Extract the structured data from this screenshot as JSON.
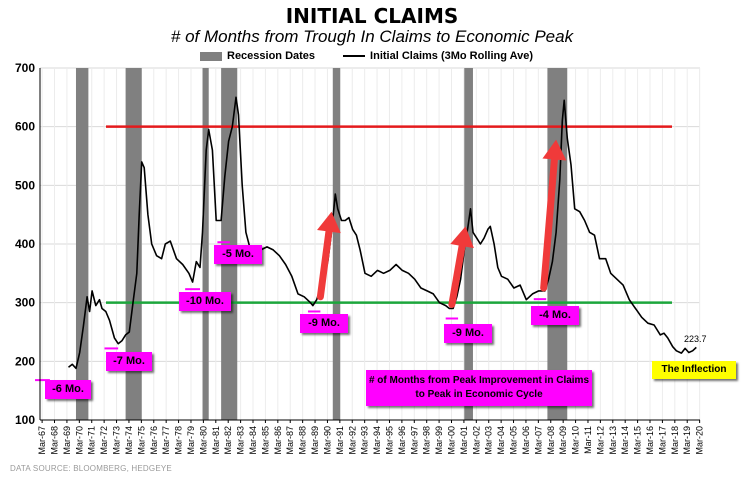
{
  "title": "INITIAL CLAIMS",
  "subtitle": "# of Months from Trough In Claims to Economic Peak",
  "legend": {
    "recession_label": "Recession Dates",
    "claims_label": "Initial Claims (3Mo Rolling Ave)"
  },
  "source": "DATA SOURCE: BLOOMBERG, HEDGEYE",
  "annotations": {
    "box_6": "-6 Mo.",
    "box_7": "-7 Mo.",
    "box_10": "-10 Mo.",
    "box_5": "-5 Mo.",
    "box_9a": "-9 Mo.",
    "box_9b": "-9 Mo.",
    "box_4": "-4 Mo.",
    "note": "# of Months from Peak Improvement in Claims to Peak in Economic Cycle",
    "inflection": "The Inflection",
    "last_value": "223.7"
  },
  "colors": {
    "upper_line": "#e41a1c",
    "lower_line": "#1ca63c",
    "recession": "#808080",
    "series": "#000000",
    "arrow": "#f03a3a",
    "box": "#ff00ff",
    "inflection": "#ffff00"
  },
  "chart_data": {
    "type": "line",
    "title": "INITIAL CLAIMS",
    "subtitle": "# of Months from Trough In Claims to Economic Peak",
    "ylim": [
      100,
      700
    ],
    "yticks": [
      100,
      200,
      300,
      400,
      500,
      600,
      700
    ],
    "xlim": [
      1967.0,
      2020.2
    ],
    "xticklabels": [
      "Mar-67",
      "Mar-68",
      "Mar-69",
      "Mar-70",
      "Mar-71",
      "Mar-72",
      "Mar-73",
      "Mar-74",
      "Mar-75",
      "Mar-76",
      "Mar-77",
      "Mar-78",
      "Mar-79",
      "Mar-80",
      "Mar-81",
      "Mar-82",
      "Mar-83",
      "Mar-84",
      "Mar-85",
      "Mar-86",
      "Mar-87",
      "Mar-88",
      "Mar-89",
      "Mar-90",
      "Mar-91",
      "Mar-92",
      "Mar-93",
      "Mar-94",
      "Mar-95",
      "Mar-96",
      "Mar-97",
      "Mar-98",
      "Mar-99",
      "Mar-00",
      "Mar-01",
      "Mar-02",
      "Mar-03",
      "Mar-04",
      "Mar-05",
      "Mar-06",
      "Mar-07",
      "Mar-08",
      "Mar-09",
      "Mar-10",
      "Mar-11",
      "Mar-12",
      "Mar-13",
      "Mar-14",
      "Mar-15",
      "Mar-16",
      "Mar-17",
      "Mar-18",
      "Mar-19",
      "Mar-20"
    ],
    "grid": true,
    "legend_position": "top",
    "series": [
      {
        "name": "Initial Claims (3Mo Rolling Ave)",
        "points": [
          [
            1969.3,
            190
          ],
          [
            1969.6,
            195
          ],
          [
            1969.9,
            188
          ],
          [
            1970.2,
            215
          ],
          [
            1970.5,
            260
          ],
          [
            1970.8,
            310
          ],
          [
            1971.0,
            285
          ],
          [
            1971.2,
            320
          ],
          [
            1971.5,
            295
          ],
          [
            1971.8,
            305
          ],
          [
            1972.0,
            290
          ],
          [
            1972.3,
            285
          ],
          [
            1972.6,
            270
          ],
          [
            1973.0,
            240
          ],
          [
            1973.3,
            230
          ],
          [
            1973.6,
            235
          ],
          [
            1973.9,
            245
          ],
          [
            1974.2,
            250
          ],
          [
            1974.5,
            300
          ],
          [
            1974.8,
            350
          ],
          [
            1975.0,
            450
          ],
          [
            1975.2,
            540
          ],
          [
            1975.4,
            530
          ],
          [
            1975.7,
            450
          ],
          [
            1976.0,
            400
          ],
          [
            1976.4,
            380
          ],
          [
            1976.8,
            375
          ],
          [
            1977.1,
            400
          ],
          [
            1977.5,
            405
          ],
          [
            1978.0,
            375
          ],
          [
            1978.5,
            365
          ],
          [
            1979.0,
            350
          ],
          [
            1979.3,
            335
          ],
          [
            1979.6,
            370
          ],
          [
            1979.9,
            360
          ],
          [
            1980.1,
            420
          ],
          [
            1980.4,
            560
          ],
          [
            1980.6,
            595
          ],
          [
            1980.9,
            560
          ],
          [
            1981.2,
            440
          ],
          [
            1981.6,
            440
          ],
          [
            1981.9,
            515
          ],
          [
            1982.2,
            575
          ],
          [
            1982.5,
            600
          ],
          [
            1982.8,
            650
          ],
          [
            1983.0,
            620
          ],
          [
            1983.3,
            500
          ],
          [
            1983.6,
            420
          ],
          [
            1983.9,
            395
          ],
          [
            1984.3,
            370
          ],
          [
            1984.8,
            390
          ],
          [
            1985.3,
            395
          ],
          [
            1985.8,
            390
          ],
          [
            1986.3,
            380
          ],
          [
            1986.8,
            365
          ],
          [
            1987.3,
            345
          ],
          [
            1987.8,
            315
          ],
          [
            1988.3,
            310
          ],
          [
            1988.8,
            300
          ],
          [
            1989.0,
            295
          ],
          [
            1989.3,
            305
          ],
          [
            1989.6,
            325
          ],
          [
            1989.9,
            345
          ],
          [
            1990.2,
            370
          ],
          [
            1990.5,
            420
          ],
          [
            1990.8,
            485
          ],
          [
            1991.0,
            460
          ],
          [
            1991.3,
            440
          ],
          [
            1991.6,
            440
          ],
          [
            1991.9,
            445
          ],
          [
            1992.2,
            425
          ],
          [
            1992.5,
            415
          ],
          [
            1992.8,
            390
          ],
          [
            1993.2,
            350
          ],
          [
            1993.7,
            345
          ],
          [
            1994.2,
            355
          ],
          [
            1994.7,
            350
          ],
          [
            1995.2,
            355
          ],
          [
            1995.7,
            365
          ],
          [
            1996.2,
            355
          ],
          [
            1996.7,
            350
          ],
          [
            1997.2,
            340
          ],
          [
            1997.7,
            325
          ],
          [
            1998.2,
            320
          ],
          [
            1998.7,
            315
          ],
          [
            1999.2,
            300
          ],
          [
            1999.7,
            295
          ],
          [
            2000.0,
            290
          ],
          [
            2000.3,
            290
          ],
          [
            2000.6,
            310
          ],
          [
            2000.9,
            340
          ],
          [
            2001.2,
            390
          ],
          [
            2001.5,
            430
          ],
          [
            2001.7,
            460
          ],
          [
            2001.9,
            420
          ],
          [
            2002.2,
            410
          ],
          [
            2002.5,
            400
          ],
          [
            2002.8,
            410
          ],
          [
            2003.1,
            425
          ],
          [
            2003.3,
            430
          ],
          [
            2003.6,
            400
          ],
          [
            2003.9,
            360
          ],
          [
            2004.2,
            345
          ],
          [
            2004.7,
            340
          ],
          [
            2005.2,
            325
          ],
          [
            2005.7,
            330
          ],
          [
            2006.2,
            305
          ],
          [
            2006.7,
            315
          ],
          [
            2007.2,
            320
          ],
          [
            2007.7,
            320
          ],
          [
            2008.0,
            340
          ],
          [
            2008.3,
            370
          ],
          [
            2008.6,
            420
          ],
          [
            2008.9,
            510
          ],
          [
            2009.1,
            610
          ],
          [
            2009.25,
            645
          ],
          [
            2009.5,
            580
          ],
          [
            2009.8,
            535
          ],
          [
            2010.1,
            460
          ],
          [
            2010.5,
            455
          ],
          [
            2010.9,
            440
          ],
          [
            2011.3,
            420
          ],
          [
            2011.7,
            415
          ],
          [
            2012.1,
            375
          ],
          [
            2012.6,
            375
          ],
          [
            2013.0,
            350
          ],
          [
            2013.5,
            340
          ],
          [
            2014.0,
            330
          ],
          [
            2014.5,
            305
          ],
          [
            2015.0,
            290
          ],
          [
            2015.5,
            275
          ],
          [
            2016.0,
            265
          ],
          [
            2016.5,
            262
          ],
          [
            2017.0,
            245
          ],
          [
            2017.3,
            248
          ],
          [
            2017.6,
            240
          ],
          [
            2018.0,
            225
          ],
          [
            2018.3,
            218
          ],
          [
            2018.7,
            214
          ],
          [
            2019.0,
            222
          ],
          [
            2019.3,
            215
          ],
          [
            2019.6,
            218
          ],
          [
            2019.9,
            223.7
          ]
        ]
      }
    ],
    "recessions": [
      [
        1969.9,
        1970.9
      ],
      [
        1973.9,
        1975.2
      ],
      [
        1980.1,
        1980.6
      ],
      [
        1981.6,
        1982.9
      ],
      [
        1990.6,
        1991.2
      ],
      [
        2001.2,
        2001.9
      ],
      [
        2007.9,
        2009.5
      ]
    ],
    "reference_lines": [
      {
        "value": 600,
        "color": "#e41a1c"
      },
      {
        "value": 300,
        "color": "#1ca63c"
      }
    ],
    "trough_markers": [
      [
        1966.6,
        1967.8,
        168
      ],
      [
        1972.2,
        1973.3,
        222
      ],
      [
        1978.7,
        1979.9,
        323
      ],
      [
        1981.3,
        1982.3,
        403
      ],
      [
        1988.6,
        1989.6,
        285
      ],
      [
        1999.7,
        2000.7,
        273
      ],
      [
        2006.8,
        2007.8,
        306
      ]
    ],
    "arrows": [
      [
        1989.6,
        310,
        1990.5,
        455
      ],
      [
        2000.2,
        297,
        2001.3,
        430
      ],
      [
        2007.6,
        325,
        2008.6,
        578
      ]
    ]
  }
}
